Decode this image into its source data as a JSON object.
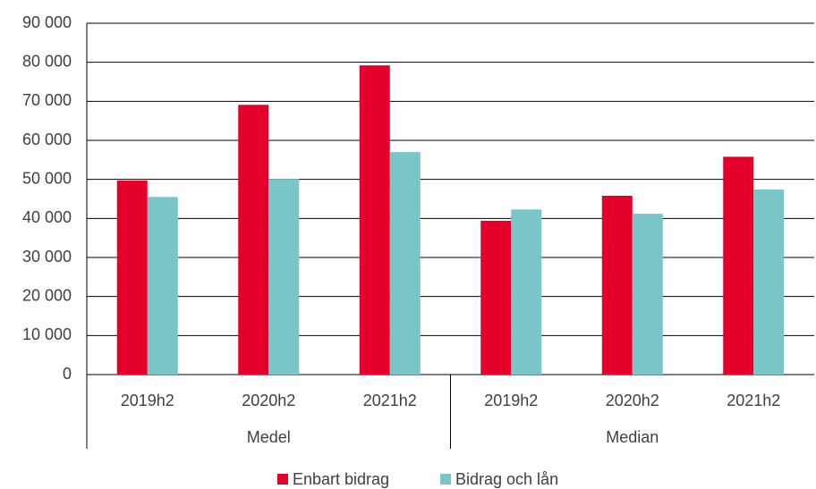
{
  "chart_data": {
    "type": "bar",
    "categories": [
      "2019h2",
      "2020h2",
      "2021h2",
      "2019h2",
      "2020h2",
      "2021h2"
    ],
    "category_groups": [
      {
        "label": "Medel",
        "count": 3
      },
      {
        "label": "Median",
        "count": 3
      }
    ],
    "series": [
      {
        "name": "Enbart bidrag",
        "color": "#e4002b",
        "values": [
          49700,
          69100,
          79200,
          39400,
          45800,
          55800
        ]
      },
      {
        "name": "Bidrag och lån",
        "color": "#79c5c8",
        "values": [
          45500,
          50100,
          57000,
          42300,
          41200,
          47400
        ]
      }
    ],
    "ylim": [
      0,
      90000
    ],
    "yticks": [
      0,
      {
        "value": 10000,
        "label": "10 000"
      },
      {
        "value": 20000,
        "label": "20 000"
      },
      {
        "value": 30000,
        "label": "30 000"
      },
      {
        "value": 40000,
        "label": "40 000"
      },
      {
        "value": 50000,
        "label": "50 000"
      },
      {
        "value": 60000,
        "label": "60 000"
      },
      {
        "value": 70000,
        "label": "70 000"
      },
      {
        "value": 80000,
        "label": "80 000"
      },
      {
        "value": 90000,
        "label": "90 000"
      }
    ],
    "grid": true,
    "legend": "bottom"
  }
}
